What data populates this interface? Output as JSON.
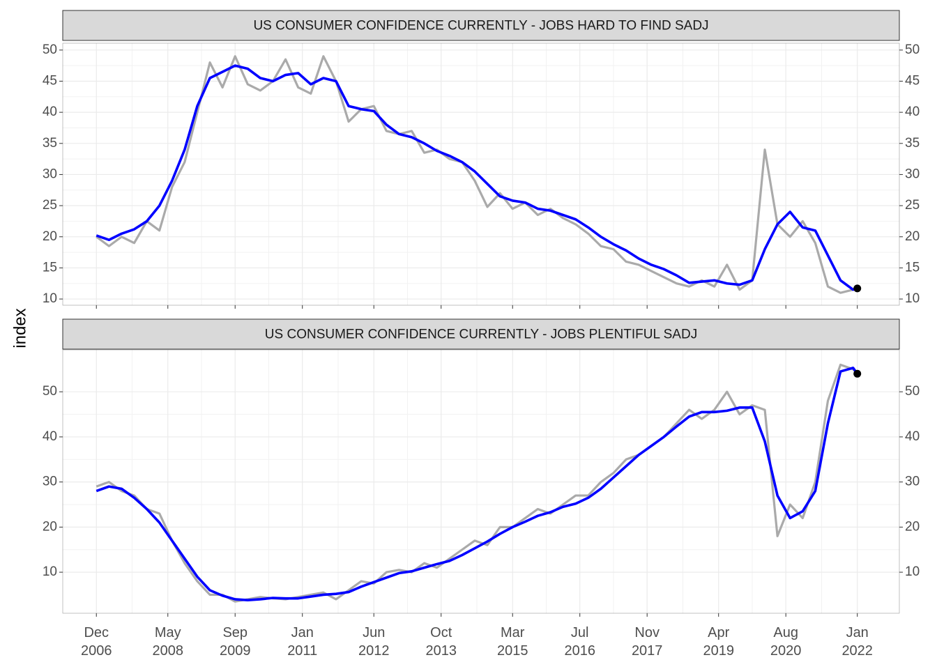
{
  "chart_data": [
    {
      "type": "line",
      "title": "US CONSUMER CONFIDENCE CURRENTLY - JOBS HARD TO FIND SADJ",
      "ylabel": "index",
      "x": [
        "2006-12",
        "2007-03",
        "2007-06",
        "2007-09",
        "2007-12",
        "2008-03",
        "2008-06",
        "2008-09",
        "2008-12",
        "2009-03",
        "2009-06",
        "2009-09",
        "2009-12",
        "2010-03",
        "2010-06",
        "2010-09",
        "2010-12",
        "2011-03",
        "2011-06",
        "2011-09",
        "2011-12",
        "2012-03",
        "2012-06",
        "2012-09",
        "2012-12",
        "2013-03",
        "2013-06",
        "2013-09",
        "2013-12",
        "2014-03",
        "2014-06",
        "2014-09",
        "2014-12",
        "2015-03",
        "2015-06",
        "2015-09",
        "2015-12",
        "2016-03",
        "2016-06",
        "2016-09",
        "2016-12",
        "2017-03",
        "2017-06",
        "2017-09",
        "2017-12",
        "2018-03",
        "2018-06",
        "2018-09",
        "2018-12",
        "2019-03",
        "2019-06",
        "2019-09",
        "2019-12",
        "2020-03",
        "2020-06",
        "2020-09",
        "2020-12",
        "2021-03",
        "2021-06",
        "2021-09",
        "2021-12",
        "2022-01"
      ],
      "series": [
        {
          "color": "#aaaaaa",
          "values": [
            20,
            18.5,
            20,
            19,
            22.5,
            21,
            28,
            32,
            40,
            48,
            44,
            49,
            44.5,
            43.5,
            45,
            48.5,
            44,
            43,
            49,
            45,
            38.5,
            40.5,
            41,
            37,
            36.5,
            37,
            33.5,
            34,
            32.5,
            32,
            29,
            24.8,
            27,
            24.5,
            25.5,
            23.5,
            24.5,
            23,
            22,
            20.5,
            18.5,
            18,
            16,
            15.5,
            14.5,
            13.5,
            12.5,
            12,
            13,
            12,
            15.5,
            11.5,
            13,
            34,
            22,
            20,
            22.5,
            19,
            12,
            11,
            11.5,
            11.8
          ]
        },
        {
          "color": "#0000ff",
          "end_marker_color": "#000000",
          "values": [
            20.2,
            19.5,
            20.5,
            21.2,
            22.5,
            25,
            29,
            34,
            41,
            45.5,
            46.5,
            47.5,
            47,
            45.5,
            45,
            46,
            46.3,
            44.5,
            45.5,
            45,
            41,
            40.5,
            40.2,
            38,
            36.5,
            36,
            35,
            33.8,
            33,
            32,
            30.5,
            28.5,
            26.5,
            25.8,
            25.5,
            24.5,
            24.2,
            23.5,
            22.8,
            21.5,
            20,
            18.8,
            17.8,
            16.5,
            15.5,
            14.8,
            13.8,
            12.6,
            12.8,
            13,
            12.5,
            12.3,
            13,
            18,
            22,
            24,
            21.5,
            21,
            17,
            13,
            11.5,
            11.7
          ]
        }
      ],
      "ylim": [
        9,
        51.1
      ],
      "yticks": [
        10,
        15,
        20,
        25,
        30,
        35,
        40,
        45,
        50
      ],
      "grid": true
    },
    {
      "type": "line",
      "title": "US CONSUMER CONFIDENCE CURRENTLY - JOBS PLENTIFUL SADJ",
      "x": [
        "2006-12",
        "2007-03",
        "2007-06",
        "2007-09",
        "2007-12",
        "2008-03",
        "2008-06",
        "2008-09",
        "2008-12",
        "2009-03",
        "2009-06",
        "2009-09",
        "2009-12",
        "2010-03",
        "2010-06",
        "2010-09",
        "2010-12",
        "2011-03",
        "2011-06",
        "2011-09",
        "2011-12",
        "2012-03",
        "2012-06",
        "2012-09",
        "2012-12",
        "2013-03",
        "2013-06",
        "2013-09",
        "2013-12",
        "2014-03",
        "2014-06",
        "2014-09",
        "2014-12",
        "2015-03",
        "2015-06",
        "2015-09",
        "2015-12",
        "2016-03",
        "2016-06",
        "2016-09",
        "2016-12",
        "2017-03",
        "2017-06",
        "2017-09",
        "2017-12",
        "2018-03",
        "2018-06",
        "2018-09",
        "2018-12",
        "2019-03",
        "2019-06",
        "2019-09",
        "2019-12",
        "2020-03",
        "2020-06",
        "2020-09",
        "2020-12",
        "2021-03",
        "2021-06",
        "2021-09",
        "2021-12",
        "2022-01"
      ],
      "series": [
        {
          "color": "#aaaaaa",
          "values": [
            29,
            30,
            28,
            27,
            24,
            23,
            17,
            12,
            8,
            5,
            5,
            3.5,
            4,
            4.5,
            4.2,
            4,
            4.5,
            5,
            5.5,
            4,
            6,
            8,
            7.5,
            10,
            10.5,
            10,
            12,
            11,
            13,
            15,
            17,
            16,
            20,
            20,
            22,
            24,
            23,
            25,
            27,
            27,
            30,
            32,
            35,
            36,
            38,
            40,
            43,
            46,
            44,
            46,
            50,
            45,
            47,
            46,
            18,
            25,
            22,
            30,
            48,
            56,
            55,
            54
          ]
        },
        {
          "color": "#0000ff",
          "end_marker_color": "#000000",
          "values": [
            28,
            29,
            28.5,
            26.5,
            24,
            21,
            17,
            13,
            9,
            6,
            4.8,
            4,
            3.8,
            4,
            4.3,
            4.2,
            4.2,
            4.6,
            5,
            5.2,
            5.6,
            6.8,
            7.8,
            8.8,
            9.8,
            10.2,
            11,
            11.8,
            12.5,
            13.8,
            15.3,
            16.8,
            18.5,
            20,
            21.2,
            22.5,
            23.3,
            24.5,
            25.2,
            26.5,
            28.5,
            31,
            33.5,
            36,
            38,
            40,
            42.3,
            44.5,
            45.5,
            45.5,
            45.8,
            46.5,
            46.5,
            39,
            27,
            22,
            23.5,
            28,
            43,
            54.5,
            55.3,
            54
          ]
        }
      ],
      "ylim": [
        0.9,
        59.3
      ],
      "yticks": [
        10,
        20,
        30,
        40,
        50
      ],
      "grid": true,
      "xlim": [
        "2006-04",
        "2022-11"
      ],
      "xticks": [
        {
          "value": "2006-12",
          "label": "Dec\n2006"
        },
        {
          "value": "2008-05",
          "label": "May\n2008"
        },
        {
          "value": "2009-09",
          "label": "Sep\n2009"
        },
        {
          "value": "2011-01",
          "label": "Jan\n2011"
        },
        {
          "value": "2012-06",
          "label": "Jun\n2012"
        },
        {
          "value": "2013-10",
          "label": "Oct\n2013"
        },
        {
          "value": "2015-03",
          "label": "Mar\n2015"
        },
        {
          "value": "2016-07",
          "label": "Jul\n2016"
        },
        {
          "value": "2017-11",
          "label": "Nov\n2017"
        },
        {
          "value": "2019-04",
          "label": "Apr\n2019"
        },
        {
          "value": "2020-08",
          "label": "Aug\n2020"
        },
        {
          "value": "2022-01",
          "label": "Jan\n2022"
        }
      ]
    }
  ]
}
